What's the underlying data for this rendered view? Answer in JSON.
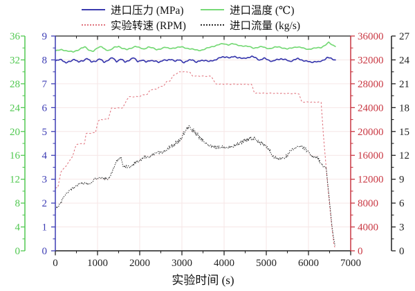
{
  "legend": {
    "items": [
      {
        "label": "进口压力 (MPa)",
        "color": "#3a3aae",
        "line_style": "solid"
      },
      {
        "label": "进口温度 (℃)",
        "color": "#76d976",
        "line_style": "solid"
      },
      {
        "label": "实验转速 (RPM)",
        "color": "#e0737d",
        "line_style": "dashed"
      },
      {
        "label": "进口流量 (kg/s)",
        "color": "#2a2a2a",
        "line_style": "dashed"
      }
    ]
  },
  "chart_data": {
    "type": "line",
    "title": "",
    "xlabel": "实验时间 (s)",
    "grid": true,
    "x_axis": {
      "min": 0,
      "max": 7000,
      "ticks": [
        0,
        1000,
        2000,
        3000,
        4000,
        5000,
        6000,
        7000
      ],
      "minor_step": 500,
      "color": "#1f1f1f"
    },
    "y_axes": [
      {
        "id": "temperature",
        "position": "outer-left",
        "label": "进口温度 (℃)",
        "color": "#50c850",
        "min": 0,
        "max": 36,
        "ticks": [
          0,
          4,
          8,
          12,
          16,
          20,
          24,
          28,
          32,
          36
        ]
      },
      {
        "id": "pressure",
        "position": "inner-left",
        "label": "进口压力 (MPa)",
        "color": "#3c3cb4",
        "min": 0,
        "max": 9,
        "ticks": [
          0,
          1,
          2,
          3,
          4,
          5,
          6,
          7,
          8,
          9
        ]
      },
      {
        "id": "rpm",
        "position": "inner-right",
        "label": "实验转速 (RPM)",
        "color": "#c93742",
        "min": 0,
        "max": 36000,
        "ticks": [
          0,
          4000,
          8000,
          12000,
          16000,
          20000,
          24000,
          28000,
          32000,
          36000
        ]
      },
      {
        "id": "flow",
        "position": "outer-right",
        "label": "进口流量 (kg/s)",
        "color": "#1f1f1f",
        "min": 0,
        "max": 27,
        "ticks": [
          0,
          3,
          6,
          9,
          12,
          15,
          18,
          21,
          24,
          27
        ]
      }
    ],
    "series": [
      {
        "name": "进口温度 (℃)",
        "axis": "temperature",
        "color": "#76d976",
        "line_style": "solid",
        "points": [
          [
            0,
            33.5
          ],
          [
            150,
            33.7
          ],
          [
            300,
            33.5
          ],
          [
            420,
            33.3
          ],
          [
            520,
            33.6
          ],
          [
            620,
            34.0
          ],
          [
            700,
            34.15
          ],
          [
            800,
            33.6
          ],
          [
            900,
            33.5
          ],
          [
            1000,
            34.0
          ],
          [
            1100,
            34.2
          ],
          [
            1200,
            33.7
          ],
          [
            1300,
            33.6
          ],
          [
            1400,
            34.1
          ],
          [
            1500,
            34.3
          ],
          [
            1600,
            33.9
          ],
          [
            1700,
            33.7
          ],
          [
            1800,
            34.0
          ],
          [
            1900,
            34.3
          ],
          [
            2000,
            34.0
          ],
          [
            2100,
            33.8
          ],
          [
            2200,
            34.2
          ],
          [
            2300,
            34.0
          ],
          [
            2400,
            33.7
          ],
          [
            2500,
            33.9
          ],
          [
            2600,
            34.1
          ],
          [
            2700,
            33.9
          ],
          [
            2800,
            34.0
          ],
          [
            2900,
            34.1
          ],
          [
            3000,
            34.15
          ],
          [
            3100,
            34.0
          ],
          [
            3200,
            33.85
          ],
          [
            3300,
            33.7
          ],
          [
            3400,
            33.6
          ],
          [
            3500,
            33.7
          ],
          [
            3600,
            33.95
          ],
          [
            3700,
            34.2
          ],
          [
            3800,
            34.4
          ],
          [
            3900,
            34.6
          ],
          [
            4000,
            34.7
          ],
          [
            4100,
            34.55
          ],
          [
            4200,
            34.7
          ],
          [
            4300,
            34.5
          ],
          [
            4400,
            34.4
          ],
          [
            4500,
            34.3
          ],
          [
            4600,
            34.2
          ],
          [
            4700,
            34.0
          ],
          [
            4800,
            34.1
          ],
          [
            4900,
            34.2
          ],
          [
            5000,
            34.0
          ],
          [
            5100,
            33.9
          ],
          [
            5200,
            34.1
          ],
          [
            5300,
            34.2
          ],
          [
            5400,
            34.0
          ],
          [
            5500,
            33.8
          ],
          [
            5600,
            34.0
          ],
          [
            5700,
            34.2
          ],
          [
            5800,
            34.1
          ],
          [
            5900,
            33.9
          ],
          [
            6000,
            33.8
          ],
          [
            6100,
            33.9
          ],
          [
            6200,
            34.0
          ],
          [
            6300,
            34.1
          ],
          [
            6400,
            34.5
          ],
          [
            6480,
            34.9
          ],
          [
            6560,
            34.5
          ],
          [
            6650,
            34.3
          ]
        ]
      },
      {
        "name": "进口压力 (MPa)",
        "axis": "pressure",
        "color": "#3a3aae",
        "line_style": "solid",
        "points": [
          [
            0,
            7.95
          ],
          [
            150,
            8.02
          ],
          [
            250,
            7.88
          ],
          [
            350,
            7.92
          ],
          [
            450,
            8.05
          ],
          [
            550,
            7.9
          ],
          [
            650,
            7.96
          ],
          [
            750,
            8.08
          ],
          [
            850,
            7.9
          ],
          [
            950,
            7.96
          ],
          [
            1050,
            8.04
          ],
          [
            1150,
            7.9
          ],
          [
            1250,
            8.0
          ],
          [
            1350,
            8.08
          ],
          [
            1450,
            7.94
          ],
          [
            1550,
            8.04
          ],
          [
            1650,
            7.9
          ],
          [
            1750,
            8.0
          ],
          [
            1850,
            8.08
          ],
          [
            1950,
            7.94
          ],
          [
            2050,
            8.0
          ],
          [
            2150,
            7.9
          ],
          [
            2250,
            8.0
          ],
          [
            2350,
            7.94
          ],
          [
            2450,
            7.9
          ],
          [
            2550,
            8.0
          ],
          [
            2650,
            7.96
          ],
          [
            2750,
            8.04
          ],
          [
            2850,
            7.94
          ],
          [
            2950,
            8.0
          ],
          [
            3050,
            7.9
          ],
          [
            3150,
            7.96
          ],
          [
            3250,
            8.02
          ],
          [
            3350,
            7.9
          ],
          [
            3450,
            7.96
          ],
          [
            3550,
            8.0
          ],
          [
            3650,
            7.92
          ],
          [
            3750,
            7.98
          ],
          [
            3850,
            8.06
          ],
          [
            3950,
            8.1
          ],
          [
            4050,
            8.14
          ],
          [
            4150,
            8.08
          ],
          [
            4250,
            8.14
          ],
          [
            4350,
            8.1
          ],
          [
            4450,
            8.04
          ],
          [
            4550,
            8.1
          ],
          [
            4650,
            8.14
          ],
          [
            4750,
            8.08
          ],
          [
            4850,
            8.0
          ],
          [
            4950,
            8.06
          ],
          [
            5050,
            8.0
          ],
          [
            5150,
            7.94
          ],
          [
            5250,
            8.0
          ],
          [
            5350,
            8.06
          ],
          [
            5450,
            8.0
          ],
          [
            5550,
            7.94
          ],
          [
            5650,
            8.0
          ],
          [
            5750,
            8.04
          ],
          [
            5850,
            8.0
          ],
          [
            5950,
            7.94
          ],
          [
            6050,
            7.9
          ],
          [
            6150,
            7.94
          ],
          [
            6250,
            7.9
          ],
          [
            6350,
            8.0
          ],
          [
            6450,
            8.1
          ],
          [
            6550,
            8.04
          ],
          [
            6650,
            8.0
          ]
        ]
      },
      {
        "name": "实验转速 (RPM)",
        "axis": "rpm",
        "color": "#e0737d",
        "line_style": "dashed",
        "points": [
          [
            0,
            10500
          ],
          [
            60,
            10600
          ],
          [
            130,
            13200
          ],
          [
            250,
            14200
          ],
          [
            330,
            15000
          ],
          [
            410,
            15900
          ],
          [
            490,
            17650
          ],
          [
            520,
            17900
          ],
          [
            690,
            17950
          ],
          [
            730,
            19650
          ],
          [
            950,
            19800
          ],
          [
            1010,
            21650
          ],
          [
            1060,
            22000
          ],
          [
            1250,
            22050
          ],
          [
            1330,
            23900
          ],
          [
            1600,
            23950
          ],
          [
            1700,
            25400
          ],
          [
            1750,
            25800
          ],
          [
            1990,
            25850
          ],
          [
            2090,
            26150
          ],
          [
            2180,
            26200
          ],
          [
            2250,
            27000
          ],
          [
            2400,
            27100
          ],
          [
            2470,
            27500
          ],
          [
            2560,
            27600
          ],
          [
            2640,
            28350
          ],
          [
            2720,
            28500
          ],
          [
            2800,
            29400
          ],
          [
            2950,
            30000
          ],
          [
            3180,
            30000
          ],
          [
            3250,
            29300
          ],
          [
            3700,
            29250
          ],
          [
            3800,
            27950
          ],
          [
            4650,
            27900
          ],
          [
            4720,
            26450
          ],
          [
            5770,
            26350
          ],
          [
            5840,
            24950
          ],
          [
            6300,
            24900
          ],
          [
            6360,
            18800
          ],
          [
            6430,
            13000
          ],
          [
            6490,
            8400
          ],
          [
            6545,
            4500
          ],
          [
            6600,
            1200
          ],
          [
            6640,
            250
          ]
        ]
      },
      {
        "name": "进口流量 (kg/s)",
        "axis": "flow",
        "color": "#2a2a2a",
        "line_style": "dashed",
        "points": [
          [
            0,
            5.3
          ],
          [
            100,
            5.8
          ],
          [
            200,
            6.7
          ],
          [
            330,
            7.6
          ],
          [
            450,
            8.0
          ],
          [
            570,
            8.45
          ],
          [
            850,
            8.5
          ],
          [
            930,
            9.05
          ],
          [
            1050,
            9.2
          ],
          [
            1250,
            9.0
          ],
          [
            1320,
            9.6
          ],
          [
            1380,
            10.3
          ],
          [
            1450,
            11.2
          ],
          [
            1520,
            11.7
          ],
          [
            1560,
            11.7
          ],
          [
            1610,
            10.6
          ],
          [
            1800,
            10.5
          ],
          [
            1880,
            11.05
          ],
          [
            2000,
            11.3
          ],
          [
            2100,
            11.75
          ],
          [
            2250,
            11.9
          ],
          [
            2420,
            12.35
          ],
          [
            2520,
            12.3
          ],
          [
            2700,
            13.0
          ],
          [
            2850,
            13.5
          ],
          [
            3000,
            14.3
          ],
          [
            3080,
            15.2
          ],
          [
            3180,
            15.5
          ],
          [
            3280,
            15.1
          ],
          [
            3400,
            14.4
          ],
          [
            3500,
            13.8
          ],
          [
            3650,
            13.2
          ],
          [
            3800,
            13.0
          ],
          [
            3950,
            13.1
          ],
          [
            4100,
            13.0
          ],
          [
            4250,
            13.2
          ],
          [
            4400,
            13.6
          ],
          [
            4550,
            14.0
          ],
          [
            4700,
            14.2
          ],
          [
            4820,
            13.7
          ],
          [
            4920,
            13.4
          ],
          [
            5020,
            13.0
          ],
          [
            5180,
            11.8
          ],
          [
            5300,
            11.5
          ],
          [
            5450,
            11.7
          ],
          [
            5610,
            12.8
          ],
          [
            5780,
            13.05
          ],
          [
            5890,
            13.0
          ],
          [
            6000,
            12.4
          ],
          [
            6100,
            11.8
          ],
          [
            6220,
            11.7
          ],
          [
            6320,
            10.8
          ],
          [
            6420,
            10.4
          ],
          [
            6460,
            8.3
          ],
          [
            6510,
            5.7
          ],
          [
            6560,
            3.0
          ],
          [
            6610,
            1.1
          ],
          [
            6640,
            0.5
          ]
        ]
      }
    ]
  }
}
